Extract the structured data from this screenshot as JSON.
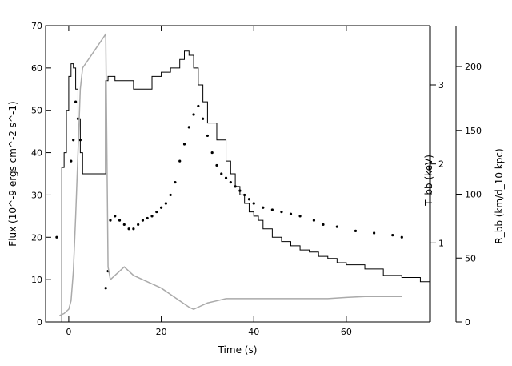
{
  "chart_data": {
    "type": "line",
    "xlabel": "Time (s)",
    "ylabel_left": "Flux (10^-9 ergs cm^-2 s^-1)",
    "ylabel_right_inner": "T_bb (keV)",
    "ylabel_right_outer": "R_bb (km/d_10 kpc)",
    "xlim": [
      -5,
      78
    ],
    "ylim_left": [
      0,
      70
    ],
    "ylim_right_inner": [
      0,
      3.75
    ],
    "ylim_right_outer": [
      0,
      232
    ],
    "x_ticks": [
      0,
      20,
      40,
      60
    ],
    "y_ticks_left": [
      0,
      10,
      20,
      30,
      40,
      50,
      60,
      70
    ],
    "y_ticks_right_inner": [
      1,
      2,
      3
    ],
    "y_ticks_right_outer": [
      0,
      50,
      100,
      150,
      200
    ],
    "series": [
      {
        "name": "",
        "style": "black-step",
        "color": "#000000",
        "x": [
          -1.5,
          -1.0,
          -0.5,
          0,
          0.5,
          1.0,
          1.5,
          2.0,
          2.5,
          3.0,
          8.0,
          8.5,
          9,
          10,
          12,
          14,
          16,
          18,
          20,
          22,
          24,
          25,
          26,
          27,
          28,
          29,
          30,
          32,
          34,
          35,
          36,
          37,
          38,
          39,
          40,
          41,
          42,
          44,
          46,
          48,
          50,
          52,
          54,
          56,
          58,
          60,
          64,
          68,
          72,
          76,
          78
        ],
        "y": [
          36.5,
          40,
          50,
          58,
          61,
          60,
          55,
          48,
          40,
          35,
          57,
          58,
          58,
          57,
          57,
          55,
          55,
          58,
          59,
          60,
          62,
          64,
          63,
          60,
          56,
          52,
          47,
          43,
          38,
          35,
          32,
          30,
          28,
          26,
          25,
          24,
          22,
          20,
          19,
          18,
          17,
          16.5,
          15.5,
          15,
          14,
          13.5,
          12.5,
          11,
          10.5,
          9.5,
          7
        ]
      },
      {
        "name": "",
        "style": "black-points",
        "color": "#000000",
        "x": [
          -2.6,
          0.5,
          1.0,
          1.5,
          2.0,
          2.5,
          8.0,
          8.5,
          9,
          10,
          11,
          12,
          13,
          14,
          15,
          16,
          17,
          18,
          19,
          20,
          21,
          22,
          23,
          24,
          25,
          26,
          27,
          28,
          29,
          30,
          31,
          32,
          33,
          34,
          35,
          36,
          37,
          38,
          39,
          40,
          42,
          44,
          46,
          48,
          50,
          53,
          55,
          58,
          62,
          66,
          70,
          72
        ],
        "y": [
          20,
          38,
          43,
          52,
          48,
          43,
          8,
          12,
          24,
          25,
          24,
          23,
          22,
          22,
          23,
          24,
          24.5,
          25,
          26,
          27,
          28,
          30,
          33,
          38,
          42,
          46,
          49,
          51,
          48,
          44,
          40,
          37,
          35,
          34,
          33,
          32,
          31,
          30,
          29,
          28,
          27,
          26.5,
          26,
          25.5,
          25,
          24,
          23,
          22.5,
          21.5,
          21,
          20.5,
          20
        ]
      },
      {
        "name": "",
        "style": "gray-line",
        "color": "#aaaaaa",
        "x": [
          -2,
          -1,
          0,
          0.5,
          1,
          1.5,
          2,
          2.5,
          3,
          8,
          8.5,
          9,
          10,
          11,
          12,
          13,
          14,
          16,
          18,
          20,
          22,
          24,
          26,
          27,
          28,
          30,
          32,
          34,
          36,
          38,
          40,
          44,
          48,
          52,
          56,
          60,
          64,
          68,
          72
        ],
        "y": [
          1.5,
          2,
          3,
          5,
          12,
          25,
          40,
          55,
          60,
          68,
          13,
          10,
          11,
          12,
          13,
          12,
          11,
          10,
          9,
          8,
          6.5,
          5,
          3.5,
          3,
          3.5,
          4.5,
          5,
          5.5,
          5.5,
          5.5,
          5.5,
          5.5,
          5.5,
          5.5,
          5.5,
          5.8,
          6,
          6,
          6
        ]
      }
    ]
  }
}
